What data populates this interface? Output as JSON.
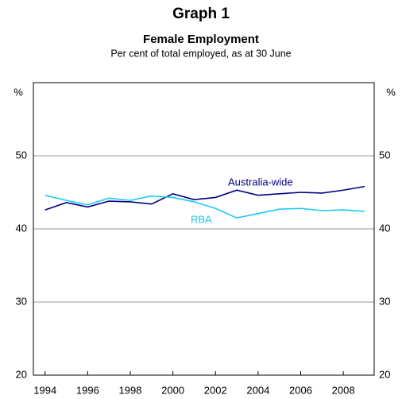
{
  "chart_data": {
    "type": "line",
    "title": "Graph 1",
    "subtitle": "Female Employment",
    "caption": "Per cent of total employed, as at 30 June",
    "y_label": "%",
    "y2_label": "%",
    "x": [
      1994,
      1995,
      1996,
      1997,
      1998,
      1999,
      2000,
      2001,
      2002,
      2003,
      2004,
      2005,
      2006,
      2007,
      2008,
      2009
    ],
    "series": [
      {
        "name": "Australia-wide",
        "color": "#000080",
        "values": [
          42.6,
          43.6,
          43.0,
          43.8,
          43.7,
          43.4,
          44.8,
          44.0,
          44.3,
          45.3,
          44.6,
          44.8,
          45.0,
          44.9,
          45.3,
          45.8
        ]
      },
      {
        "name": "RBA",
        "color": "#1ec8f5",
        "values": [
          44.6,
          43.9,
          43.3,
          44.2,
          43.9,
          44.5,
          44.3,
          43.7,
          42.8,
          41.5,
          42.1,
          42.7,
          42.8,
          42.5,
          42.6,
          42.4
        ]
      }
    ],
    "xlim": [
      1993.45,
      2009.45
    ],
    "xticks": [
      1994,
      1996,
      1998,
      2000,
      2002,
      2004,
      2006,
      2008
    ],
    "ylim": [
      20,
      60
    ],
    "yticks": [
      20,
      30,
      40,
      50
    ],
    "y2lim": [
      20,
      60
    ],
    "y2ticks": [
      20,
      30,
      40,
      50
    ],
    "grid": true
  }
}
